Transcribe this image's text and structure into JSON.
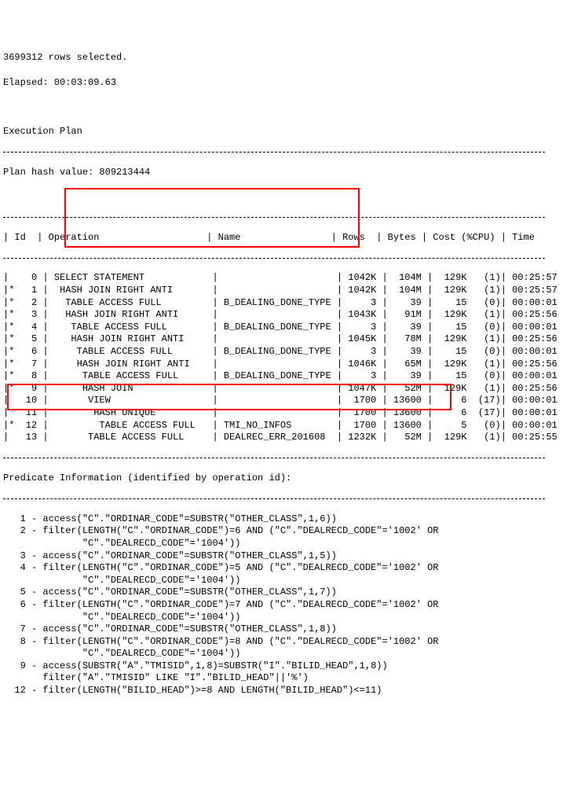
{
  "header": {
    "rows_selected": "3699312 rows selected.",
    "elapsed": "Elapsed: 00:03:09.63",
    "exec_plan": "Execution Plan",
    "plan_hash": "Plan hash value: 809213444"
  },
  "cols": [
    "Id",
    "Operation",
    "Name",
    "Rows",
    "Bytes",
    "Cost (%CPU)",
    "Time"
  ],
  "plan": [
    {
      "star": " ",
      "id": "  0",
      "op": "SELECT STATEMENT",
      "name": "",
      "rows": " 1042K",
      "bytes": "  104M",
      "cost": "  129K",
      "cpu": " (1)",
      "time": "00:25:57"
    },
    {
      "star": "*",
      "id": "  1",
      "op": " HASH JOIN RIGHT ANTI",
      "name": "",
      "rows": " 1042K",
      "bytes": "  104M",
      "cost": "  129K",
      "cpu": " (1)",
      "time": "00:25:57"
    },
    {
      "star": "*",
      "id": "  2",
      "op": "  TABLE ACCESS FULL",
      "name": "B_DEALING_DONE_TYPE",
      "rows": "     3",
      "bytes": "    39",
      "cost": "    15",
      "cpu": " (0)",
      "time": "00:00:01"
    },
    {
      "star": "*",
      "id": "  3",
      "op": "  HASH JOIN RIGHT ANTI",
      "name": "",
      "rows": " 1043K",
      "bytes": "   91M",
      "cost": "  129K",
      "cpu": " (1)",
      "time": "00:25:56"
    },
    {
      "star": "*",
      "id": "  4",
      "op": "   TABLE ACCESS FULL",
      "name": "B_DEALING_DONE_TYPE",
      "rows": "     3",
      "bytes": "    39",
      "cost": "    15",
      "cpu": " (0)",
      "time": "00:00:01"
    },
    {
      "star": "*",
      "id": "  5",
      "op": "   HASH JOIN RIGHT ANTI",
      "name": "",
      "rows": " 1045K",
      "bytes": "   78M",
      "cost": "  129K",
      "cpu": " (1)",
      "time": "00:25:56"
    },
    {
      "star": "*",
      "id": "  6",
      "op": "    TABLE ACCESS FULL",
      "name": "B_DEALING_DONE_TYPE",
      "rows": "     3",
      "bytes": "    39",
      "cost": "    15",
      "cpu": " (0)",
      "time": "00:00:01"
    },
    {
      "star": "*",
      "id": "  7",
      "op": "    HASH JOIN RIGHT ANTI",
      "name": "",
      "rows": " 1046K",
      "bytes": "   65M",
      "cost": "  129K",
      "cpu": " (1)",
      "time": "00:25:56"
    },
    {
      "star": "*",
      "id": "  8",
      "op": "     TABLE ACCESS FULL",
      "name": "B_DEALING_DONE_TYPE",
      "rows": "     3",
      "bytes": "    39",
      "cost": "    15",
      "cpu": " (0)",
      "time": "00:00:01"
    },
    {
      "star": "*",
      "id": "  9",
      "op": "     HASH JOIN",
      "name": "",
      "rows": " 1047K",
      "bytes": "   52M",
      "cost": "  129K",
      "cpu": " (1)",
      "time": "00:25:56"
    },
    {
      "star": " ",
      "id": " 10",
      "op": "      VIEW",
      "name": "",
      "rows": "  1700",
      "bytes": " 13600",
      "cost": "     6",
      "cpu": "(17)",
      "time": "00:00:01"
    },
    {
      "star": " ",
      "id": " 11",
      "op": "       HASH UNIQUE",
      "name": "",
      "rows": "  1700",
      "bytes": " 13600",
      "cost": "     6",
      "cpu": "(17)",
      "time": "00:00:01"
    },
    {
      "star": "*",
      "id": " 12",
      "op": "        TABLE ACCESS FULL",
      "name": "TMI_NO_INFOS",
      "rows": "  1700",
      "bytes": " 13600",
      "cost": "     5",
      "cpu": " (0)",
      "time": "00:00:01"
    },
    {
      "star": " ",
      "id": " 13",
      "op": "      TABLE ACCESS FULL",
      "name": "DEALREC_ERR_201608",
      "rows": " 1232K",
      "bytes": "   52M",
      "cost": "  129K",
      "cpu": " (1)",
      "time": "00:25:55"
    }
  ],
  "pred_header": "Predicate Information (identified by operation id):",
  "predicates": [
    "   1 - access(\"C\".\"ORDINAR_CODE\"=SUBSTR(\"OTHER_CLASS\",1,6))",
    "   2 - filter(LENGTH(\"C\".\"ORDINAR_CODE\")=6 AND (\"C\".\"DEALRECD_CODE\"='1002' OR",
    "              \"C\".\"DEALRECD_CODE\"='1004'))",
    "   3 - access(\"C\".\"ORDINAR_CODE\"=SUBSTR(\"OTHER_CLASS\",1,5))",
    "   4 - filter(LENGTH(\"C\".\"ORDINAR_CODE\")=5 AND (\"C\".\"DEALRECD_CODE\"='1002' OR",
    "              \"C\".\"DEALRECD_CODE\"='1004'))",
    "   5 - access(\"C\".\"ORDINAR_CODE\"=SUBSTR(\"OTHER_CLASS\",1,7))",
    "   6 - filter(LENGTH(\"C\".\"ORDINAR_CODE\")=7 AND (\"C\".\"DEALRECD_CODE\"='1002' OR",
    "              \"C\".\"DEALRECD_CODE\"='1004'))",
    "   7 - access(\"C\".\"ORDINAR_CODE\"=SUBSTR(\"OTHER_CLASS\",1,8))",
    "   8 - filter(LENGTH(\"C\".\"ORDINAR_CODE\")=8 AND (\"C\".\"DEALRECD_CODE\"='1002' OR",
    "              \"C\".\"DEALRECD_CODE\"='1004'))",
    "   9 - access(SUBSTR(\"A\".\"TMISID\",1,8)=SUBSTR(\"I\".\"BILID_HEAD\",1,8))",
    "       filter(\"A\".\"TMISID\" LIKE \"I\".\"BILID_HEAD\"||'%')",
    "  12 - filter(LENGTH(\"BILID_HEAD\")>=8 AND LENGTH(\"BILID_HEAD\")<=11)"
  ]
}
